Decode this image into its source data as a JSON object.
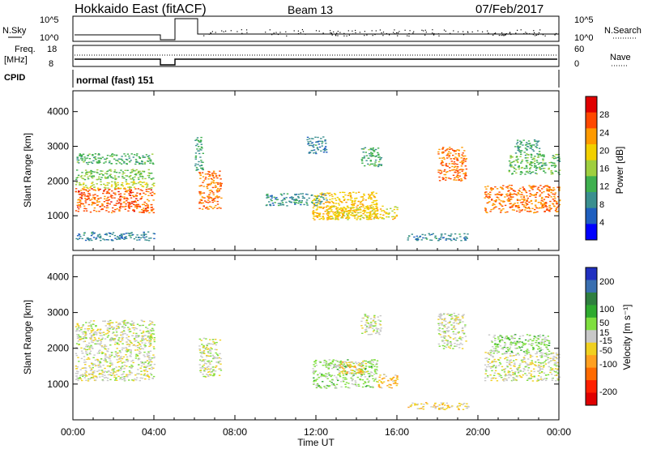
{
  "header": {
    "title": "Hokkaido East (fitACF)",
    "beam": "Beam 13",
    "date": "07/Feb/2017"
  },
  "noise": {
    "left_label": "N.Sky",
    "left_ticks": [
      "10^5",
      "10^0"
    ],
    "right_ticks": [
      "10^5",
      "10^0"
    ],
    "right_label": "N.Search"
  },
  "freq": {
    "left_label_1": "Freq.",
    "left_label_2": "[MHz]",
    "left_ticks": [
      "18",
      "8"
    ],
    "right_ticks": [
      "60",
      "0"
    ],
    "right_label": "Nave"
  },
  "cpid": {
    "label": "CPID",
    "value": "normal (fast) 151"
  },
  "colors": {
    "power_scale": [
      "#0000ff",
      "#1f5fbf",
      "#3a8f8f",
      "#3fb04f",
      "#9fcf3f",
      "#f2d000",
      "#ff9a00",
      "#ff4800",
      "#e00000"
    ],
    "velocity_scale": [
      "#2030c0",
      "#3a6fb0",
      "#2f7f3f",
      "#2faa2f",
      "#7fdf3f",
      "#c8c8c8",
      "#f0d020",
      "#ffa020",
      "#ff6a00",
      "#ff2000",
      "#e00000"
    ]
  },
  "chart_data": [
    {
      "type": "heatmap",
      "panel": "power",
      "ylabel": "Slant Range [km]",
      "yticks": [
        "1000",
        "2000",
        "3000",
        "4000"
      ],
      "ylim": [
        0,
        4600
      ],
      "xlim": [
        0,
        24
      ],
      "colorbar_label": "Power [dB]",
      "colorbar_ticks": [
        "4",
        "8",
        "12",
        "16",
        "20",
        "24",
        "28"
      ],
      "colorbar_range": [
        0,
        32
      ],
      "regions": [
        {
          "t0": 0.1,
          "t1": 4.0,
          "r0": 1100,
          "r1": 1800,
          "value": 26
        },
        {
          "t0": 0.1,
          "t1": 4.0,
          "r0": 1800,
          "r1": 2000,
          "value": 17
        },
        {
          "t0": 0.1,
          "t1": 4.0,
          "r0": 2050,
          "r1": 2350,
          "value": 14
        },
        {
          "t0": 0.1,
          "t1": 4.0,
          "r0": 2500,
          "r1": 2800,
          "value": 12
        },
        {
          "t0": 0.1,
          "t1": 4.0,
          "r0": 300,
          "r1": 550,
          "value": 8
        },
        {
          "t0": 6.2,
          "t1": 7.3,
          "r0": 1200,
          "r1": 2300,
          "value": 25
        },
        {
          "t0": 6.0,
          "t1": 6.4,
          "r0": 2300,
          "r1": 3300,
          "value": 11
        },
        {
          "t0": 9.5,
          "t1": 12.5,
          "r0": 1300,
          "r1": 1650,
          "value": 9
        },
        {
          "t0": 11.8,
          "t1": 15.0,
          "r0": 900,
          "r1": 1700,
          "value": 21
        },
        {
          "t0": 12.5,
          "t1": 16.0,
          "r0": 900,
          "r1": 1300,
          "value": 19
        },
        {
          "t0": 14.2,
          "t1": 15.2,
          "r0": 2400,
          "r1": 3000,
          "value": 12
        },
        {
          "t0": 11.5,
          "t1": 12.5,
          "r0": 2800,
          "r1": 3300,
          "value": 8
        },
        {
          "t0": 18.0,
          "t1": 19.4,
          "r0": 2000,
          "r1": 3000,
          "value": 25
        },
        {
          "t0": 20.3,
          "t1": 24.0,
          "r0": 1100,
          "r1": 1900,
          "value": 25
        },
        {
          "t0": 21.5,
          "t1": 24.0,
          "r0": 2200,
          "r1": 2800,
          "value": 13
        },
        {
          "t0": 21.8,
          "t1": 23.0,
          "r0": 2800,
          "r1": 3200,
          "value": 10
        },
        {
          "t0": 16.5,
          "t1": 19.5,
          "r0": 300,
          "r1": 500,
          "value": 8
        }
      ]
    },
    {
      "type": "heatmap",
      "panel": "velocity",
      "ylabel": "Slant Range [km]",
      "yticks": [
        "1000",
        "2000",
        "3000",
        "4000"
      ],
      "ylim": [
        0,
        4600
      ],
      "xlim": [
        0,
        24
      ],
      "xlabel": "Time UT",
      "xticks": [
        "00:00",
        "04:00",
        "08:00",
        "12:00",
        "16:00",
        "20:00",
        "00:00"
      ],
      "colorbar_label": "Velocity [m s⁻¹]",
      "colorbar_ticks": [
        "200",
        "100",
        "50",
        "15",
        "-15",
        "-50",
        "-100",
        "-200"
      ],
      "colorbar_range": [
        -250,
        250
      ],
      "regions": [
        {
          "t0": 0.1,
          "t1": 4.0,
          "r0": 1100,
          "r1": 2800,
          "value": 0
        },
        {
          "t0": 6.2,
          "t1": 7.3,
          "r0": 1200,
          "r1": 2300,
          "value": 0
        },
        {
          "t0": 11.8,
          "t1": 15.0,
          "r0": 900,
          "r1": 1700,
          "value": 40
        },
        {
          "t0": 13.0,
          "t1": 14.5,
          "r0": 1300,
          "r1": 1650,
          "value": -60
        },
        {
          "t0": 15.0,
          "t1": 16.0,
          "r0": 900,
          "r1": 1300,
          "value": -60
        },
        {
          "t0": 14.2,
          "t1": 15.2,
          "r0": 2400,
          "r1": 3000,
          "value": 0
        },
        {
          "t0": 18.0,
          "t1": 19.4,
          "r0": 2000,
          "r1": 3000,
          "value": 0
        },
        {
          "t0": 20.3,
          "t1": 24.0,
          "r0": 1100,
          "r1": 1900,
          "value": 0
        },
        {
          "t0": 20.5,
          "t1": 23.5,
          "r0": 1900,
          "r1": 2400,
          "value": 40
        },
        {
          "t0": 16.5,
          "t1": 19.5,
          "r0": 300,
          "r1": 500,
          "value": -40
        }
      ]
    }
  ]
}
